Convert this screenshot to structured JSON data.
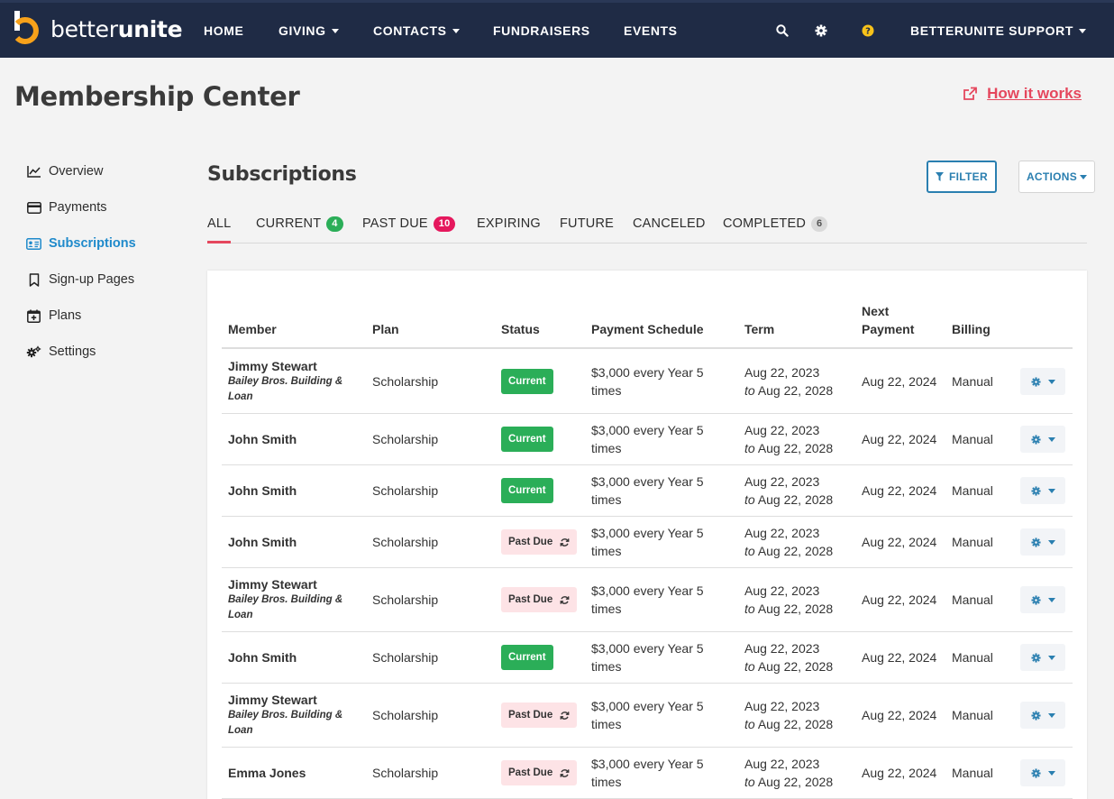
{
  "brand": {
    "name_light": "better",
    "name_bold": "unite",
    "orange": "#f7a11a"
  },
  "nav": {
    "home": "HOME",
    "giving": "GIVING",
    "contacts": "CONTACTS",
    "fundraisers": "FUNDRAISERS",
    "events": "EVENTS",
    "account": "BETTERUNITE SUPPORT"
  },
  "page": {
    "title": "Membership Center",
    "how_it_works": "How it works"
  },
  "sidebar": {
    "items": [
      {
        "label": "Overview",
        "icon": "chart-line-icon"
      },
      {
        "label": "Payments",
        "icon": "credit-card-icon"
      },
      {
        "label": "Subscriptions",
        "icon": "id-card-icon",
        "active": true
      },
      {
        "label": "Sign-up Pages",
        "icon": "bookmark-icon"
      },
      {
        "label": "Plans",
        "icon": "calendar-plus-icon"
      },
      {
        "label": "Settings",
        "icon": "cogs-icon"
      }
    ]
  },
  "section": {
    "title": "Subscriptions",
    "filter": "FILTER",
    "actions": "ACTIONS"
  },
  "tabs": [
    {
      "label": "ALL",
      "active": true
    },
    {
      "label": "CURRENT",
      "count": "4",
      "color": "green"
    },
    {
      "label": "PAST DUE",
      "count": "10",
      "color": "red"
    },
    {
      "label": "EXPIRING"
    },
    {
      "label": "FUTURE"
    },
    {
      "label": "CANCELED"
    },
    {
      "label": "COMPLETED",
      "count": "6",
      "color": "grey"
    }
  ],
  "table": {
    "headers": {
      "member": "Member",
      "plan": "Plan",
      "status": "Status",
      "schedule": "Payment Schedule",
      "term": "Term",
      "next_line1": "Next",
      "next_line2": "Payment",
      "billing": "Billing"
    },
    "rows": [
      {
        "name": "Jimmy Stewart",
        "org": "Bailey Bros. Building & Loan",
        "plan": "Scholarship",
        "status": "Current",
        "sched1": "$3,000 every Year 5",
        "sched2": "times",
        "term_start": "Aug 22, 2023",
        "term_to": "to",
        "term_end": "Aug 22, 2028",
        "next": "Aug 22, 2024",
        "billing": "Manual"
      },
      {
        "name": "John Smith",
        "org": "",
        "plan": "Scholarship",
        "status": "Current",
        "sched1": "$3,000 every Year 5",
        "sched2": "times",
        "term_start": "Aug 22, 2023",
        "term_to": "to",
        "term_end": "Aug 22, 2028",
        "next": "Aug 22, 2024",
        "billing": "Manual"
      },
      {
        "name": "John Smith",
        "org": "",
        "plan": "Scholarship",
        "status": "Current",
        "sched1": "$3,000 every Year 5",
        "sched2": "times",
        "term_start": "Aug 22, 2023",
        "term_to": "to",
        "term_end": "Aug 22, 2028",
        "next": "Aug 22, 2024",
        "billing": "Manual"
      },
      {
        "name": "John Smith",
        "org": "",
        "plan": "Scholarship",
        "status": "Past Due",
        "sched1": "$3,000 every Year 5",
        "sched2": "times",
        "term_start": "Aug 22, 2023",
        "term_to": "to",
        "term_end": "Aug 22, 2028",
        "next": "Aug 22, 2024",
        "billing": "Manual"
      },
      {
        "name": "Jimmy Stewart",
        "org": "Bailey Bros. Building & Loan",
        "plan": "Scholarship",
        "status": "Past Due",
        "sched1": "$3,000 every Year 5",
        "sched2": "times",
        "term_start": "Aug 22, 2023",
        "term_to": "to",
        "term_end": "Aug 22, 2028",
        "next": "Aug 22, 2024",
        "billing": "Manual"
      },
      {
        "name": "John Smith",
        "org": "",
        "plan": "Scholarship",
        "status": "Current",
        "sched1": "$3,000 every Year 5",
        "sched2": "times",
        "term_start": "Aug 22, 2023",
        "term_to": "to",
        "term_end": "Aug 22, 2028",
        "next": "Aug 22, 2024",
        "billing": "Manual"
      },
      {
        "name": "Jimmy Stewart",
        "org": "Bailey Bros. Building & Loan",
        "plan": "Scholarship",
        "status": "Past Due",
        "sched1": "$3,000 every Year 5",
        "sched2": "times",
        "term_start": "Aug 22, 2023",
        "term_to": "to",
        "term_end": "Aug 22, 2028",
        "next": "Aug 22, 2024",
        "billing": "Manual"
      },
      {
        "name": "Emma Jones",
        "org": "",
        "plan": "Scholarship",
        "status": "Past Due",
        "sched1": "$3,000 every Year 5",
        "sched2": "times",
        "term_start": "Aug 22, 2023",
        "term_to": "to",
        "term_end": "Aug 22, 2028",
        "next": "Aug 22, 2024",
        "billing": "Manual"
      }
    ]
  },
  "colors": {
    "nav_bg": "#1f2b45",
    "link_red": "#e5475d",
    "blue": "#2a7fb0",
    "green": "#2bae58"
  }
}
